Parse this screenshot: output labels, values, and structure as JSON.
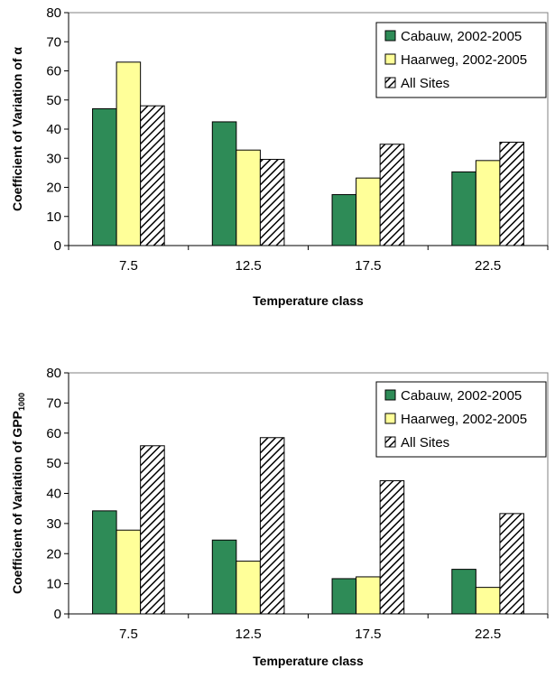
{
  "chart_data": [
    {
      "type": "bar",
      "xlabel": "Temperature class",
      "ylabel": "Coefficient of Variation of α",
      "categories": [
        "7.5",
        "12.5",
        "17.5",
        "22.5"
      ],
      "ylim": [
        0,
        80
      ],
      "yticks": [
        "0",
        "10",
        "20",
        "30",
        "40",
        "50",
        "60",
        "70",
        "80"
      ],
      "grid": false,
      "legend_position": "top-right",
      "series": [
        {
          "name": "Cabauw, 2002-2005",
          "color": "#2e8b57",
          "pattern": "solid",
          "values": [
            47,
            42.5,
            17.5,
            25.3
          ]
        },
        {
          "name": "Haarweg, 2002-2005",
          "color": "#ffff99",
          "pattern": "solid",
          "values": [
            63,
            32.8,
            23.2,
            29.2
          ]
        },
        {
          "name": "All Sites",
          "color": "#ffffff",
          "pattern": "hatch",
          "values": [
            48,
            29.6,
            34.8,
            35.5
          ]
        }
      ]
    },
    {
      "type": "bar",
      "xlabel": "Temperature class",
      "ylabel": "Coefficient of Variation of GPP",
      "ylabel_subscript": "1000",
      "categories": [
        "7.5",
        "12.5",
        "17.5",
        "22.5"
      ],
      "ylim": [
        0,
        80
      ],
      "yticks": [
        "0",
        "10",
        "20",
        "30",
        "40",
        "50",
        "60",
        "70",
        "80"
      ],
      "grid": false,
      "legend_position": "top-right",
      "series": [
        {
          "name": "Cabauw, 2002-2005",
          "color": "#2e8b57",
          "pattern": "solid",
          "values": [
            34.2,
            24.5,
            11.7,
            14.8
          ]
        },
        {
          "name": "Haarweg, 2002-2005",
          "color": "#ffff99",
          "pattern": "solid",
          "values": [
            27.8,
            17.5,
            12.3,
            8.8
          ]
        },
        {
          "name": "All Sites",
          "color": "#ffffff",
          "pattern": "hatch",
          "values": [
            55.8,
            58.5,
            44.2,
            33.3
          ]
        }
      ]
    }
  ]
}
